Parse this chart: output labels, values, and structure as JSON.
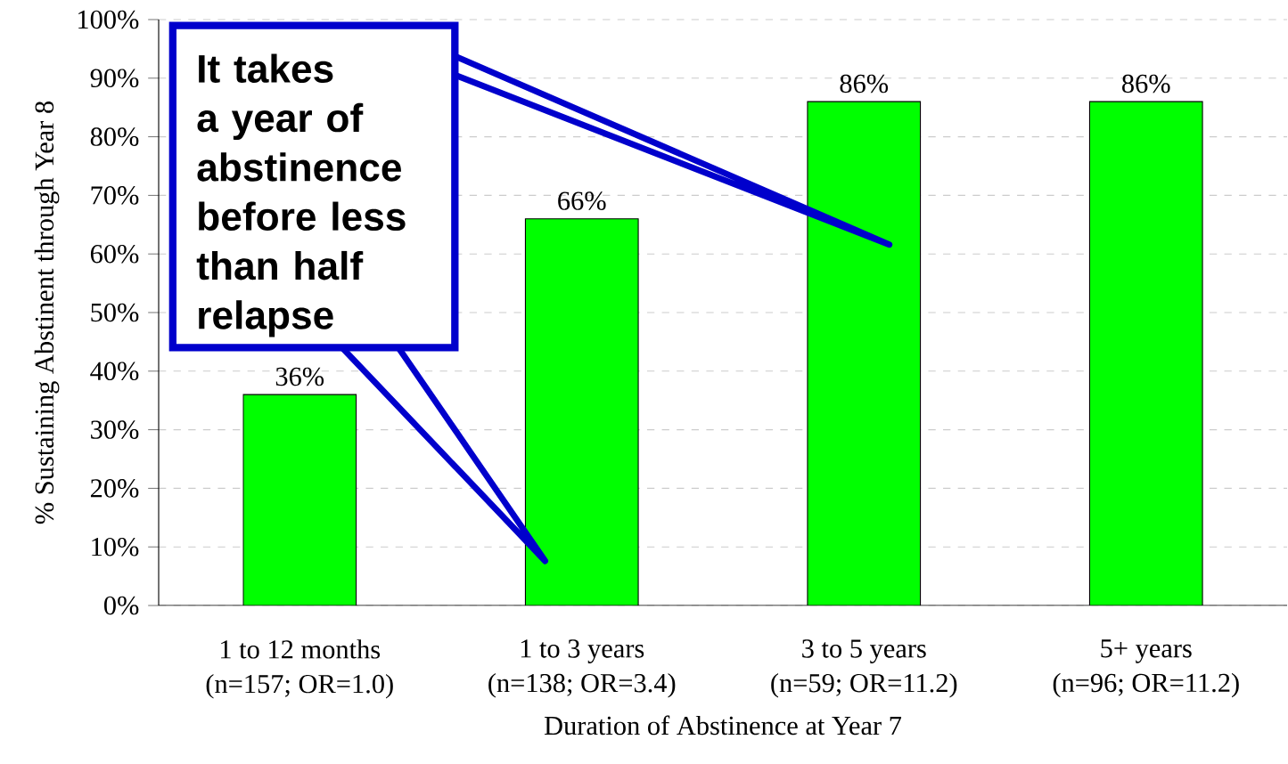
{
  "chart_data": {
    "type": "bar",
    "categories": [
      "1 to 12 months\n(n=157; OR=1.0)",
      "1 to 3 years\n(n=138; OR=3.4)",
      "3 to 5 years\n(n=59; OR=11.2)",
      "5+ years\n(n=96; OR=11.2)"
    ],
    "values": [
      36,
      66,
      86,
      86
    ],
    "value_labels": [
      "36%",
      "66%",
      "86%",
      "86%"
    ],
    "color": "#00ff00",
    "xlabel": "Duration of Abstinence at Year 7",
    "ylabel": "% Sustaining Abstinent through Year 8",
    "ylim": [
      0,
      100
    ],
    "yticks": [
      {
        "value": 0,
        "label": "0%"
      },
      {
        "value": 10,
        "label": "10%"
      },
      {
        "value": 20,
        "label": "20%"
      },
      {
        "value": 30,
        "label": "30%"
      },
      {
        "value": 40,
        "label": "40%"
      },
      {
        "value": 50,
        "label": "50%"
      },
      {
        "value": 60,
        "label": "60%"
      },
      {
        "value": 70,
        "label": "70%"
      },
      {
        "value": 80,
        "label": "80%"
      },
      {
        "value": 90,
        "label": "90%"
      },
      {
        "value": 100,
        "label": "100%"
      }
    ],
    "grid": "y",
    "annotations": [
      "It takes a year of abstinence before less than half relapse"
    ]
  }
}
